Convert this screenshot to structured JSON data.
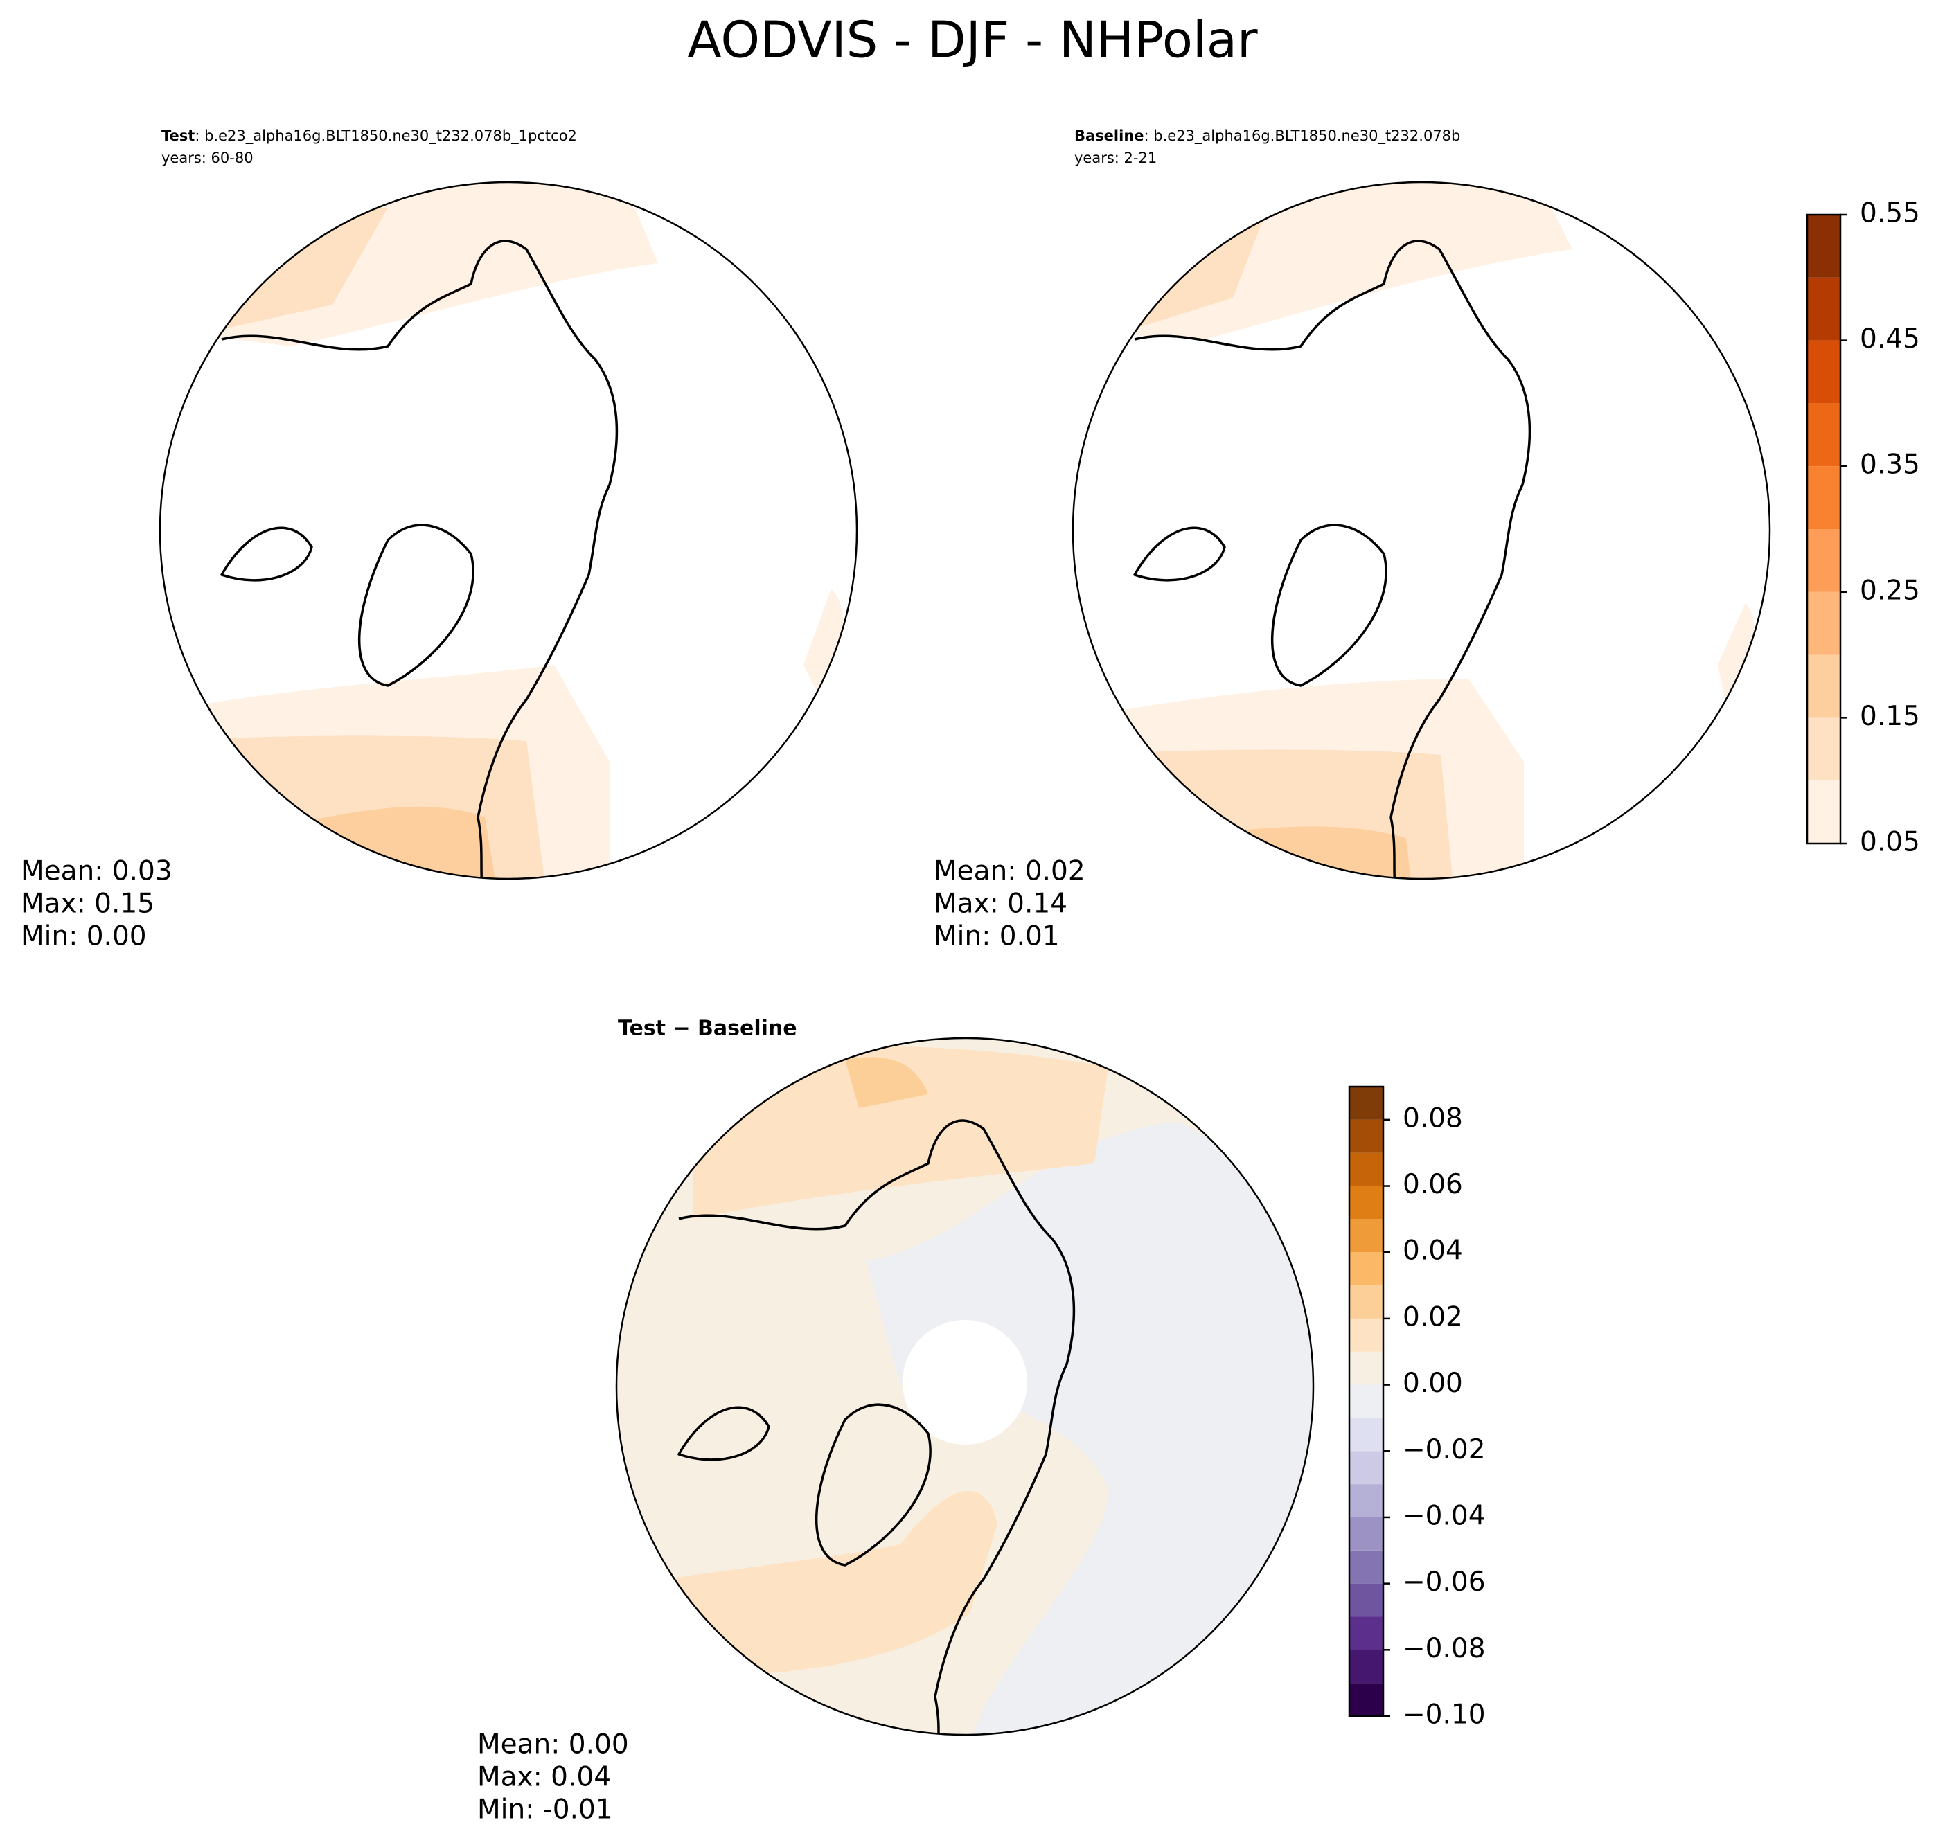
{
  "chart_data": {
    "type": "polar-map",
    "title": "AODVIS - DJF - NHPolar",
    "panels": [
      {
        "label": "Test",
        "case": ": b.e23_alpha16g.BLT1850.ne30_t232.078b_1pctco2",
        "years": "years: 60-80",
        "stats": [
          "Mean:  0.03",
          "Max:  0.15",
          "Min:  0.00"
        ]
      },
      {
        "label": "Baseline",
        "case": ": b.e23_alpha16g.BLT1850.ne30_t232.078b",
        "years": "years: 2-21",
        "stats": [
          "Mean:  0.02",
          "Max:  0.14",
          "Min:  0.01"
        ]
      },
      {
        "label": "Test − Baseline",
        "stats": [
          "Mean:  0.00",
          "Max:  0.04",
          "Min: -0.01"
        ]
      }
    ],
    "colorbars": [
      {
        "levels": [
          0.05,
          0.1,
          0.15,
          0.2,
          0.25,
          0.3,
          0.35,
          0.4,
          0.45,
          0.5,
          0.55
        ],
        "colors": [
          "#fff1e4",
          "#fee0c3",
          "#fdcf9f",
          "#fdb77a",
          "#fd9d57",
          "#f8822f",
          "#ec6816",
          "#d84e07",
          "#b43c03",
          "#8b2f05"
        ],
        "ticks": [
          0.05,
          0.15,
          0.25,
          0.35,
          0.45,
          0.55
        ]
      },
      {
        "levels": [
          -0.1,
          -0.09,
          -0.08,
          -0.07,
          -0.06,
          -0.05,
          -0.04,
          -0.03,
          -0.02,
          -0.01,
          0.0,
          0.01,
          0.02,
          0.03,
          0.04,
          0.05,
          0.06,
          0.07,
          0.08,
          0.09
        ],
        "colors": [
          "#2d004b",
          "#45176f",
          "#5b2f8b",
          "#6f55a0",
          "#8475b2",
          "#9c93c4",
          "#b5b0d6",
          "#cccae4",
          "#dedff0",
          "#eeeff3",
          "#f8efe3",
          "#fde2c3",
          "#fdcf98",
          "#fbb866",
          "#f09b3a",
          "#df7e14",
          "#c56409",
          "#a34d07",
          "#7f3b08"
        ],
        "ticks": [
          {
            "value": -0.1,
            "label": "−0.10"
          },
          {
            "value": -0.08,
            "label": "−0.08"
          },
          {
            "value": -0.06,
            "label": "−0.06"
          },
          {
            "value": -0.04,
            "label": "−0.04"
          },
          {
            "value": -0.02,
            "label": "−0.02"
          },
          {
            "value": 0.0,
            "label": "0.00"
          },
          0.02,
          0.04,
          0.06,
          0.08
        ]
      }
    ]
  }
}
